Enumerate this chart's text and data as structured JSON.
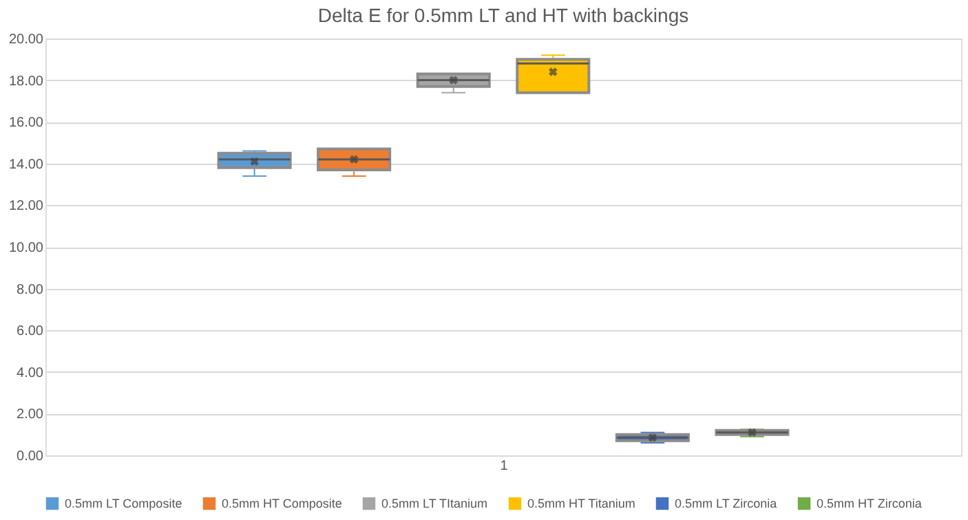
{
  "chart_data": {
    "type": "box",
    "title": "Delta E for 0.5mm LT and HT with backings",
    "categories": [
      "1"
    ],
    "ylim": [
      0,
      20
    ],
    "yticks": [
      {
        "value": 0,
        "label": "0.00"
      },
      {
        "value": 2,
        "label": "2.00"
      },
      {
        "value": 4,
        "label": "4.00"
      },
      {
        "value": 6,
        "label": "6.00"
      },
      {
        "value": 8,
        "label": "8.00"
      },
      {
        "value": 10,
        "label": "10.00"
      },
      {
        "value": 12,
        "label": "12.00"
      },
      {
        "value": 14,
        "label": "14.00"
      },
      {
        "value": 16,
        "label": "16.00"
      },
      {
        "value": 18,
        "label": "18.00"
      },
      {
        "value": 20,
        "label": "20.00"
      }
    ],
    "grid": "y",
    "legend": "bottom",
    "series": [
      {
        "name": "0.5mm LT Composite",
        "color": "#5b9bd5",
        "boxes": [
          {
            "low": 13.4,
            "q1": 13.8,
            "median": 14.2,
            "q3": 14.5,
            "high": 14.6,
            "mean": 14.1
          }
        ]
      },
      {
        "name": "0.5mm HT Composite",
        "color": "#ed7d31",
        "boxes": [
          {
            "low": 13.4,
            "q1": 13.7,
            "median": 14.2,
            "q3": 14.7,
            "high": 14.7,
            "mean": 14.2
          }
        ]
      },
      {
        "name": "0.5mm LT TItanium",
        "color": "#a5a5a5",
        "boxes": [
          {
            "low": 17.4,
            "q1": 17.7,
            "median": 18.0,
            "q3": 18.3,
            "high": 18.3,
            "mean": 18.0
          }
        ]
      },
      {
        "name": "0.5mm HT Titanium",
        "color": "#ffc000",
        "boxes": [
          {
            "low": 17.4,
            "q1": 17.4,
            "median": 18.8,
            "q3": 19.0,
            "high": 19.2,
            "mean": 18.4
          }
        ]
      },
      {
        "name": "0.5mm LT Zirconia",
        "color": "#4472c4",
        "boxes": [
          {
            "low": 0.6,
            "q1": 0.7,
            "median": 0.85,
            "q3": 1.0,
            "high": 1.1,
            "mean": 0.85
          }
        ]
      },
      {
        "name": "0.5mm HT Zirconia",
        "color": "#70ad47",
        "boxes": [
          {
            "low": 0.9,
            "q1": 1.0,
            "median": 1.1,
            "q3": 1.2,
            "high": 1.25,
            "mean": 1.1
          }
        ]
      }
    ]
  }
}
